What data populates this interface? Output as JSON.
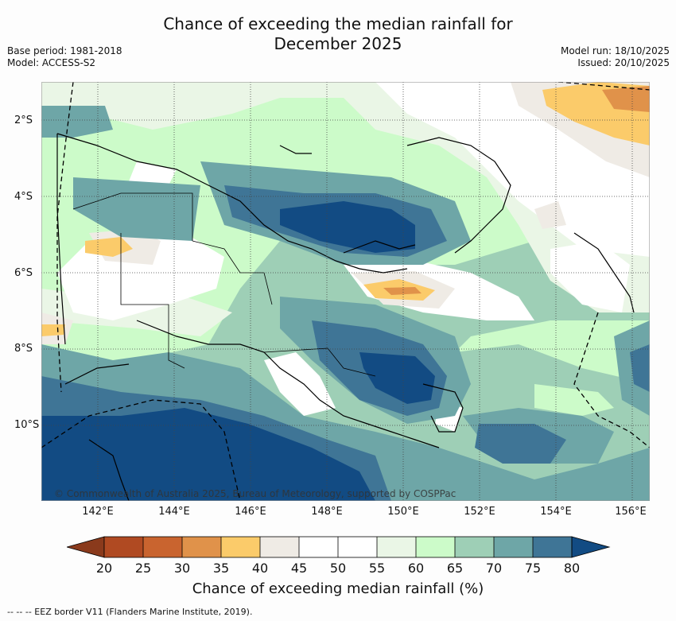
{
  "title": {
    "line1": "Chance of exceeding the median rainfall for",
    "line2": "December 2025"
  },
  "meta_left": {
    "base_period": "Base period: 1981-2018",
    "model": "Model: ACCESS-S2"
  },
  "meta_right": {
    "model_run": "Model run: 18/10/2025",
    "issued": "Issued: 20/10/2025"
  },
  "axes": {
    "lat_labels": [
      "2°S",
      "4°S",
      "6°S",
      "8°S",
      "10°S"
    ],
    "lon_labels": [
      "142°E",
      "144°E",
      "146°E",
      "148°E",
      "150°E",
      "152°E",
      "154°E",
      "156°E"
    ]
  },
  "copyright": "© Commonwealth of Australia 2025, Bureau of Meteorology, supported by COSPPac",
  "colorbar": {
    "ticks": [
      "20",
      "25",
      "30",
      "35",
      "40",
      "45",
      "50",
      "55",
      "60",
      "65",
      "70",
      "75",
      "80"
    ],
    "colors": {
      "lt20": "#8a3a1c",
      "b20_25": "#b04a22",
      "b25_30": "#c9642f",
      "b30_35": "#e0924a",
      "b35_40": "#fbcb6a",
      "b40_45": "#efebe5",
      "b45_55": "#ffffff",
      "b55_60": "#eaf6e6",
      "b60_65": "#ccfbc9",
      "b65_70": "#9ecfb6",
      "b70_75": "#6ea6a7",
      "b75_80": "#3f7596",
      "gt80": "#124b83"
    },
    "title": "Chance of exceeding median rainfall (%)"
  },
  "footer": "--  --  -- EEZ border V11 (Flanders Marine Institute, 2019)."
}
